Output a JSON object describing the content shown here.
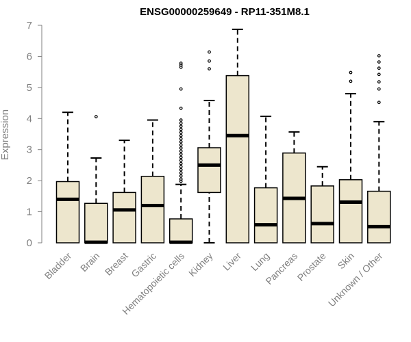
{
  "chart_data": {
    "type": "boxplot",
    "title": "ENSG00000259649 - RP11-351M8.1",
    "xlabel": "",
    "ylabel": "Expression",
    "ylim": [
      0,
      7
    ],
    "yticks": [
      "0",
      "1",
      "2",
      "3",
      "4",
      "5",
      "6",
      "7"
    ],
    "box_color": "#ede6cd",
    "categories": [
      "Bladder",
      "Brain",
      "Breast",
      "Gastric",
      "Hematopoietic cells",
      "Kidney",
      "Liver",
      "Lung",
      "Pancreas",
      "Prostate",
      "Skin",
      "Unknown / Other"
    ],
    "boxes": [
      {
        "min": 0,
        "q1": 0,
        "median": 1.4,
        "q3": 1.97,
        "max": 4.2,
        "outliers": []
      },
      {
        "min": 0,
        "q1": 0,
        "median": 0.02,
        "q3": 1.27,
        "max": 2.73,
        "outliers": [
          4.06
        ]
      },
      {
        "min": 0,
        "q1": 0,
        "median": 1.06,
        "q3": 1.62,
        "max": 3.3,
        "outliers": []
      },
      {
        "min": 0,
        "q1": 0,
        "median": 1.2,
        "q3": 2.14,
        "max": 3.95,
        "outliers": []
      },
      {
        "min": 0,
        "q1": 0,
        "median": 0.02,
        "q3": 0.77,
        "max": 1.88,
        "outliers": [
          5.78,
          5.72,
          5.65,
          4.95,
          4.33,
          3.95,
          3.85,
          3.75,
          3.65,
          3.55,
          3.45,
          3.35,
          3.25,
          3.15,
          3.05,
          2.95,
          2.85,
          2.75,
          2.65,
          2.55,
          2.45,
          2.35,
          2.25,
          2.15,
          2.05,
          1.98
        ]
      },
      {
        "min": 0,
        "q1": 1.62,
        "median": 2.5,
        "q3": 3.06,
        "max": 4.58,
        "outliers": [
          6.14,
          5.85,
          5.6
        ]
      },
      {
        "min": 0,
        "q1": 0,
        "median": 3.45,
        "q3": 5.38,
        "max": 6.87,
        "outliers": []
      },
      {
        "min": 0,
        "q1": 0,
        "median": 0.58,
        "q3": 1.77,
        "max": 4.07,
        "outliers": []
      },
      {
        "min": 0,
        "q1": 0,
        "median": 1.43,
        "q3": 2.89,
        "max": 3.57,
        "outliers": []
      },
      {
        "min": 0,
        "q1": 0,
        "median": 0.62,
        "q3": 1.83,
        "max": 2.45,
        "outliers": []
      },
      {
        "min": 0,
        "q1": 0,
        "median": 1.31,
        "q3": 2.03,
        "max": 4.8,
        "outliers": [
          5.48,
          5.2
        ]
      },
      {
        "min": 0,
        "q1": 0,
        "median": 0.52,
        "q3": 1.66,
        "max": 3.9,
        "outliers": [
          6.02,
          5.82,
          5.62,
          5.42,
          5.18,
          4.95,
          4.52
        ]
      }
    ]
  }
}
